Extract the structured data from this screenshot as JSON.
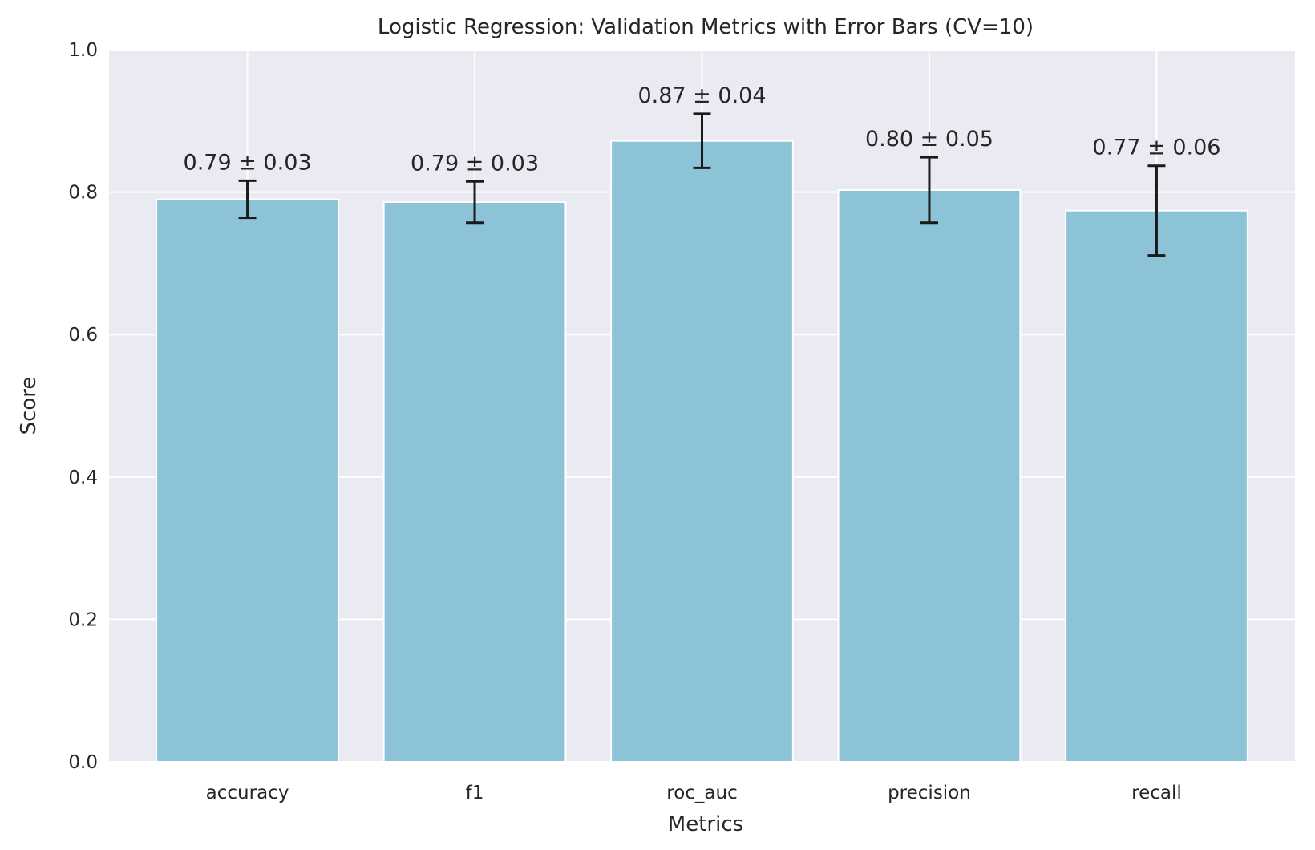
{
  "chart_data": {
    "type": "bar",
    "title": "Logistic Regression: Validation Metrics with Error Bars (CV=10)",
    "xlabel": "Metrics",
    "ylabel": "Score",
    "ylim": [
      0,
      1
    ],
    "yticks": [
      "0.0",
      "0.2",
      "0.4",
      "0.6",
      "0.8",
      "1.0"
    ],
    "grid": true,
    "categories": [
      "accuracy",
      "f1",
      "roc_auc",
      "precision",
      "recall"
    ],
    "values": [
      0.79,
      0.786,
      0.872,
      0.803,
      0.774
    ],
    "errors": [
      0.026,
      0.029,
      0.038,
      0.046,
      0.063
    ],
    "data_labels": [
      "0.79 ± 0.03",
      "0.79 ± 0.03",
      "0.87 ± 0.04",
      "0.80 ± 0.05",
      "0.77 ± 0.06"
    ],
    "colors": {
      "bar": "#8cc3d6",
      "bar_edge": "#ffffff",
      "plot_background": "#eaeaf2",
      "grid": "#ffffff",
      "error_bar": "#1a1a1a",
      "text": "#262626"
    }
  }
}
